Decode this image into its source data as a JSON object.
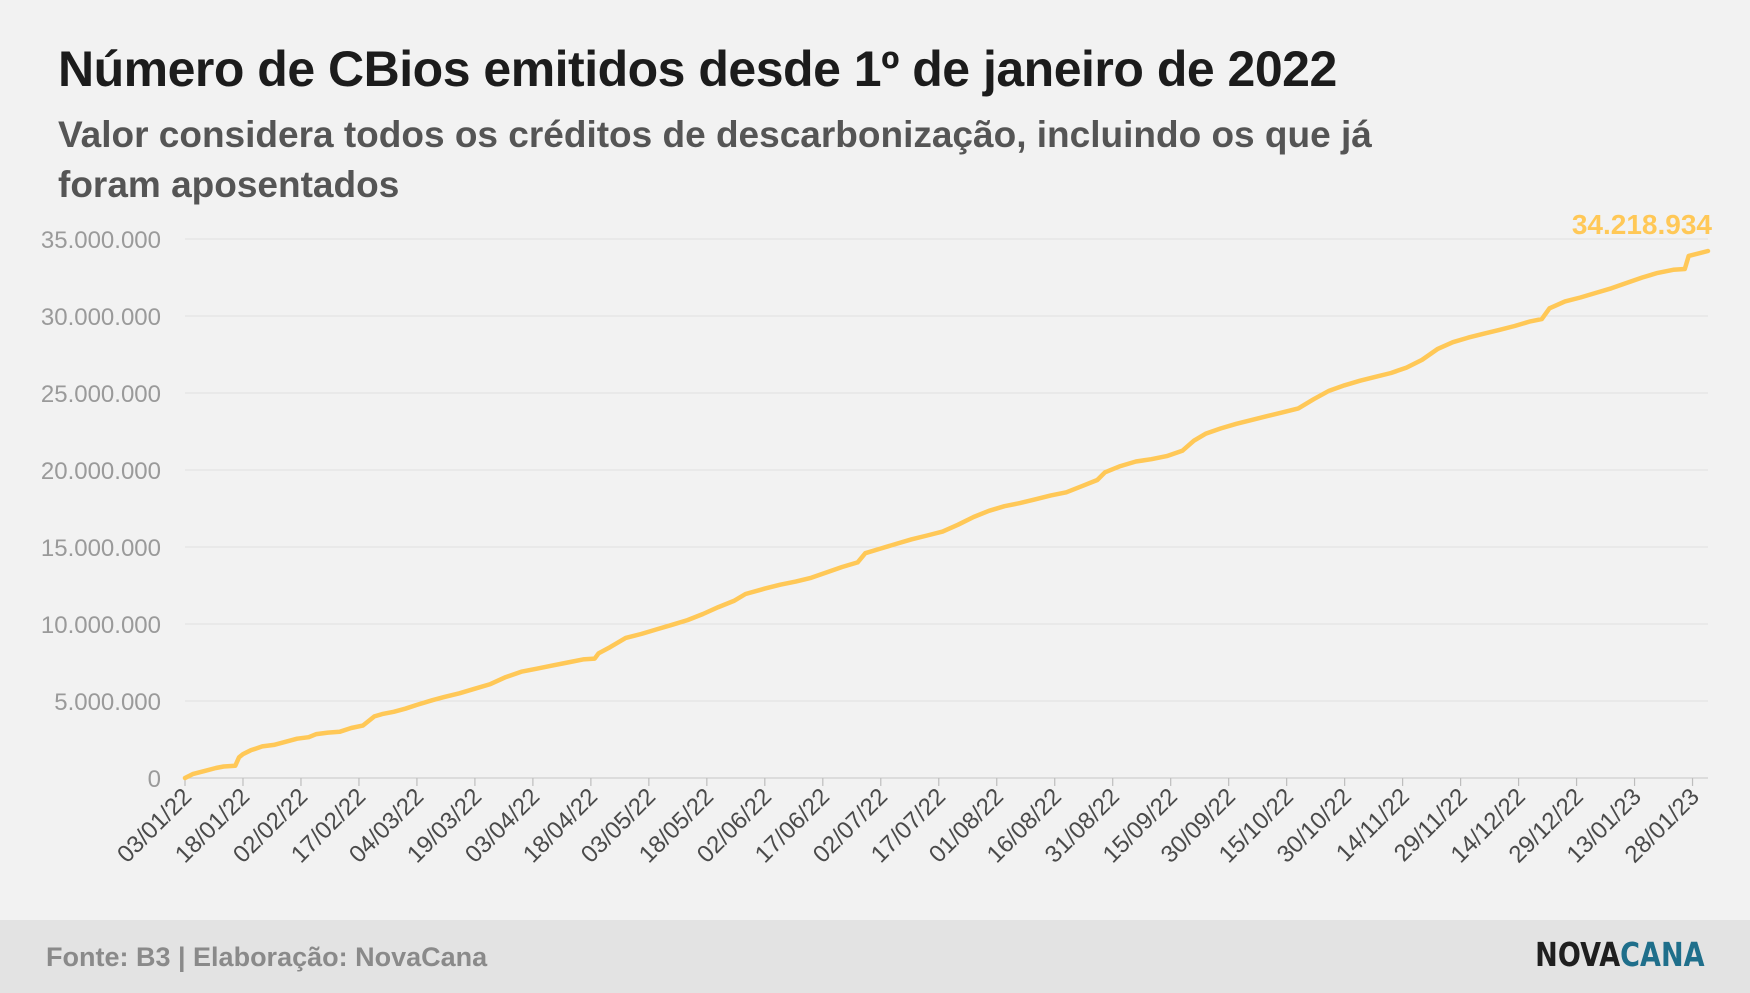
{
  "chart_data": {
    "type": "line",
    "title": "Número de CBios emitidos desde 1º de janeiro de 2022",
    "subtitle": "Valor considera todos os créditos de descarbonização, incluindo os que já foram aposentados",
    "start_date": "2022-01-03",
    "end_date": "2023-02-01",
    "y_ticks": [
      "0",
      "5.000.000",
      "10.000.000",
      "15.000.000",
      "20.000.000",
      "25.000.000",
      "30.000.000",
      "35.000.000"
    ],
    "ylim": [
      0,
      35000000
    ],
    "x_ticks": [
      "03/01/22",
      "18/01/22",
      "02/02/22",
      "17/02/22",
      "04/03/22",
      "19/03/22",
      "03/04/22",
      "18/04/22",
      "03/05/22",
      "18/05/22",
      "02/06/22",
      "17/06/22",
      "02/07/22",
      "17/07/22",
      "01/08/22",
      "16/08/22",
      "31/08/22",
      "15/09/22",
      "30/09/22",
      "15/10/22",
      "30/10/22",
      "14/11/22",
      "29/11/22",
      "14/12/22",
      "29/12/22",
      "13/01/23",
      "28/01/23"
    ],
    "grid": true,
    "line_color": "#ffc857",
    "last_value_label": "34.218.934",
    "series": [
      {
        "x": [
          "2022-01-03",
          "2022-01-05",
          "2022-01-08",
          "2022-01-11",
          "2022-01-13",
          "2022-01-16",
          "2022-01-17",
          "2022-01-18",
          "2022-01-20",
          "2022-01-23",
          "2022-01-26",
          "2022-01-29",
          "2022-02-01",
          "2022-02-04",
          "2022-02-06",
          "2022-02-09",
          "2022-02-12",
          "2022-02-15",
          "2022-02-18",
          "2022-02-21",
          "2022-02-23",
          "2022-02-26",
          "2022-03-01",
          "2022-03-04",
          "2022-03-08",
          "2022-03-11",
          "2022-03-15",
          "2022-03-19",
          "2022-03-23",
          "2022-03-27",
          "2022-03-31",
          "2022-04-04",
          "2022-04-08",
          "2022-04-12",
          "2022-04-16",
          "2022-04-19",
          "2022-04-20",
          "2022-04-23",
          "2022-04-27",
          "2022-05-01",
          "2022-05-05",
          "2022-05-09",
          "2022-05-13",
          "2022-05-17",
          "2022-05-21",
          "2022-05-25",
          "2022-05-28",
          "2022-06-02",
          "2022-06-06",
          "2022-06-10",
          "2022-06-14",
          "2022-06-18",
          "2022-06-22",
          "2022-06-26",
          "2022-06-28",
          "2022-07-02",
          "2022-07-06",
          "2022-07-10",
          "2022-07-14",
          "2022-07-18",
          "2022-07-22",
          "2022-07-26",
          "2022-07-30",
          "2022-08-03",
          "2022-08-07",
          "2022-08-11",
          "2022-08-15",
          "2022-08-19",
          "2022-08-23",
          "2022-08-27",
          "2022-08-29",
          "2022-09-02",
          "2022-09-06",
          "2022-09-10",
          "2022-09-14",
          "2022-09-18",
          "2022-09-21",
          "2022-09-24",
          "2022-09-28",
          "2022-10-02",
          "2022-10-06",
          "2022-10-10",
          "2022-10-14",
          "2022-10-18",
          "2022-10-22",
          "2022-10-26",
          "2022-10-30",
          "2022-11-03",
          "2022-11-07",
          "2022-11-11",
          "2022-11-15",
          "2022-11-19",
          "2022-11-23",
          "2022-11-27",
          "2022-12-01",
          "2022-12-05",
          "2022-12-09",
          "2022-12-13",
          "2022-12-17",
          "2022-12-20",
          "2022-12-22",
          "2022-12-26",
          "2022-12-30",
          "2023-01-03",
          "2023-01-07",
          "2023-01-11",
          "2023-01-15",
          "2023-01-19",
          "2023-01-23",
          "2023-01-26",
          "2023-01-27",
          "2023-02-01"
        ],
        "values": [
          0,
          250000,
          450000,
          650000,
          750000,
          800000,
          1350000,
          1550000,
          1800000,
          2050000,
          2150000,
          2350000,
          2550000,
          2650000,
          2850000,
          2950000,
          3000000,
          3250000,
          3400000,
          4000000,
          4150000,
          4300000,
          4500000,
          4750000,
          5050000,
          5250000,
          5500000,
          5800000,
          6100000,
          6550000,
          6900000,
          7100000,
          7300000,
          7500000,
          7700000,
          7750000,
          8100000,
          8500000,
          9100000,
          9350000,
          9650000,
          9950000,
          10250000,
          10650000,
          11100000,
          11500000,
          11950000,
          12300000,
          12550000,
          12750000,
          13000000,
          13350000,
          13700000,
          14000000,
          14600000,
          14900000,
          15200000,
          15500000,
          15750000,
          16000000,
          16450000,
          16950000,
          17350000,
          17650000,
          17850000,
          18100000,
          18350000,
          18550000,
          18950000,
          19350000,
          19850000,
          20250000,
          20550000,
          20700000,
          20900000,
          21250000,
          21900000,
          22350000,
          22700000,
          23000000,
          23250000,
          23500000,
          23750000,
          24000000,
          24600000,
          25150000,
          25500000,
          25800000,
          26050000,
          26300000,
          26650000,
          27150000,
          27850000,
          28300000,
          28600000,
          28850000,
          29100000,
          29350000,
          29650000,
          29800000,
          30500000,
          30950000,
          31200000,
          31500000,
          31800000,
          32150000,
          32500000,
          32800000,
          33000000,
          33050000,
          33900000,
          34218934
        ]
      }
    ]
  },
  "footer": {
    "source": "Fonte: B3 | Elaboração: NovaCana",
    "logo_part1": "NOVA",
    "logo_part2": "CANA"
  }
}
